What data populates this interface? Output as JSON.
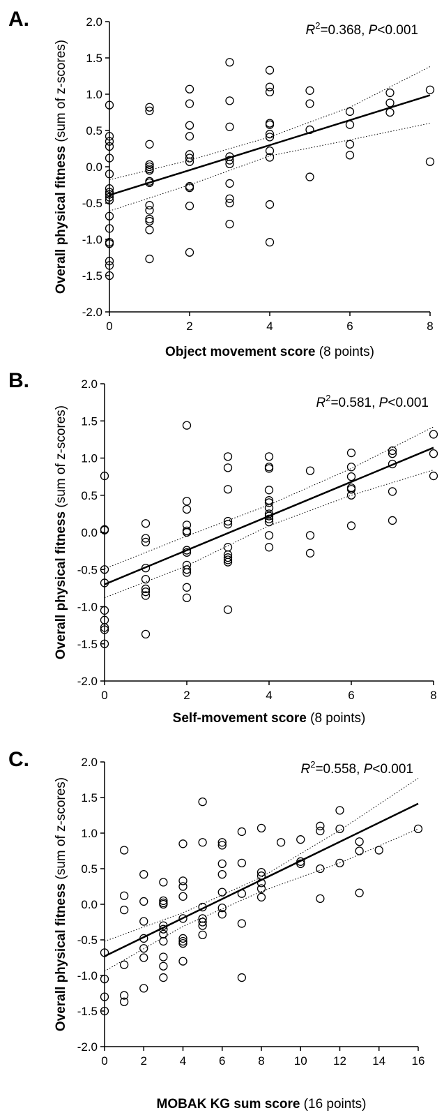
{
  "chart_data": [
    {
      "type": "scatter",
      "panel_label": "A.",
      "annotation": {
        "r2_value": "=0.368, ",
        "p_value": "<0.001"
      },
      "xlabel": {
        "bold": "Object movement score",
        "normal": " (8 points)"
      },
      "ylabel": {
        "bold": "Overall physical fitness",
        "normal": " (sum of z-scores)"
      },
      "xlim": [
        0,
        8
      ],
      "ylim": [
        -2.0,
        2.0
      ],
      "xticks": [
        "0",
        "2",
        "4",
        "6",
        "8"
      ],
      "yticks": [
        "2.0",
        "1.5",
        "1.0",
        "0.5",
        "0.0",
        "-0.5",
        "-1.0",
        "-1.5",
        "-2.0"
      ],
      "points": [
        [
          0,
          0.85
        ],
        [
          0,
          0.42
        ],
        [
          0,
          0.35
        ],
        [
          0,
          0.28
        ],
        [
          0,
          0.12
        ],
        [
          0,
          -0.1
        ],
        [
          0,
          -0.3
        ],
        [
          0,
          -0.35
        ],
        [
          0,
          -0.38
        ],
        [
          0,
          -0.42
        ],
        [
          0,
          -0.46
        ],
        [
          0,
          -0.68
        ],
        [
          0,
          -0.85
        ],
        [
          0,
          -1.04
        ],
        [
          0,
          -1.06
        ],
        [
          0,
          -1.3
        ],
        [
          0,
          -1.36
        ],
        [
          0,
          -1.5
        ],
        [
          1,
          0.82
        ],
        [
          1,
          0.77
        ],
        [
          1,
          0.31
        ],
        [
          1,
          0.03
        ],
        [
          1,
          0.0
        ],
        [
          1,
          -0.03
        ],
        [
          1,
          -0.05
        ],
        [
          1,
          -0.2
        ],
        [
          1,
          -0.22
        ],
        [
          1,
          -0.53
        ],
        [
          1,
          -0.6
        ],
        [
          1,
          -0.72
        ],
        [
          1,
          -0.75
        ],
        [
          1,
          -0.87
        ],
        [
          1,
          -1.27
        ],
        [
          2,
          1.07
        ],
        [
          2,
          0.87
        ],
        [
          2,
          0.57
        ],
        [
          2,
          0.42
        ],
        [
          2,
          0.17
        ],
        [
          2,
          0.12
        ],
        [
          2,
          0.07
        ],
        [
          2,
          -0.27
        ],
        [
          2,
          -0.29
        ],
        [
          2,
          -0.54
        ],
        [
          2,
          -1.18
        ],
        [
          3,
          1.44
        ],
        [
          3,
          0.91
        ],
        [
          3,
          0.55
        ],
        [
          3,
          0.14
        ],
        [
          3,
          0.09
        ],
        [
          3,
          0.04
        ],
        [
          3,
          -0.23
        ],
        [
          3,
          -0.44
        ],
        [
          3,
          -0.5
        ],
        [
          3,
          -0.79
        ],
        [
          4,
          1.33
        ],
        [
          4,
          1.1
        ],
        [
          4,
          1.03
        ],
        [
          4,
          0.6
        ],
        [
          4,
          0.58
        ],
        [
          4,
          0.45
        ],
        [
          4,
          0.41
        ],
        [
          4,
          0.22
        ],
        [
          4,
          0.13
        ],
        [
          4,
          -0.52
        ],
        [
          4,
          -1.04
        ],
        [
          5,
          1.05
        ],
        [
          5,
          0.87
        ],
        [
          5,
          0.51
        ],
        [
          5,
          -0.14
        ],
        [
          6,
          0.76
        ],
        [
          6,
          0.58
        ],
        [
          6,
          0.31
        ],
        [
          6,
          0.16
        ],
        [
          7,
          1.02
        ],
        [
          7,
          0.88
        ],
        [
          7,
          0.75
        ],
        [
          8,
          1.06
        ],
        [
          8,
          0.07
        ]
      ],
      "fit": {
        "intercept": -0.39,
        "slope": 0.172
      },
      "ci_lower": [
        [
          0,
          -0.61
        ],
        [
          2,
          -0.25
        ],
        [
          4,
          0.15
        ],
        [
          6,
          0.37
        ],
        [
          8,
          0.6
        ]
      ],
      "ci_upper": [
        [
          0,
          -0.18
        ],
        [
          2,
          0.09
        ],
        [
          4,
          0.41
        ],
        [
          6,
          0.82
        ],
        [
          8,
          1.38
        ]
      ]
    },
    {
      "type": "scatter",
      "panel_label": "B.",
      "annotation": {
        "r2_value": "=0.581, ",
        "p_value": "<0.001"
      },
      "xlabel": {
        "bold": "Self-movement score",
        "normal": " (8 points)"
      },
      "ylabel": {
        "bold": "Overall physical fitness",
        "normal": " (sum of z-scores)"
      },
      "xlim": [
        0,
        8
      ],
      "ylim": [
        -2.0,
        2.0
      ],
      "xticks": [
        "0",
        "2",
        "4",
        "6",
        "8"
      ],
      "yticks": [
        "2.0",
        "1.5",
        "1.0",
        "0.5",
        "0.0",
        "-0.5",
        "-1.0",
        "-1.5",
        "-2.0"
      ],
      "points": [
        [
          0,
          0.76
        ],
        [
          0,
          0.04
        ],
        [
          0,
          0.03
        ],
        [
          0,
          -0.5
        ],
        [
          0,
          -0.68
        ],
        [
          0,
          -1.05
        ],
        [
          0,
          -1.18
        ],
        [
          0,
          -1.28
        ],
        [
          0,
          -1.31
        ],
        [
          0,
          -1.5
        ],
        [
          1,
          0.12
        ],
        [
          1,
          -0.08
        ],
        [
          1,
          -0.13
        ],
        [
          1,
          -0.48
        ],
        [
          1,
          -0.63
        ],
        [
          1,
          -0.76
        ],
        [
          1,
          -0.8
        ],
        [
          1,
          -0.85
        ],
        [
          1,
          -1.37
        ],
        [
          2,
          1.44
        ],
        [
          2,
          0.42
        ],
        [
          2,
          0.31
        ],
        [
          2,
          0.1
        ],
        [
          2,
          0.02
        ],
        [
          2,
          0.0
        ],
        [
          2,
          -0.24
        ],
        [
          2,
          -0.27
        ],
        [
          2,
          -0.44
        ],
        [
          2,
          -0.5
        ],
        [
          2,
          -0.54
        ],
        [
          2,
          -0.74
        ],
        [
          2,
          -0.88
        ],
        [
          3,
          1.02
        ],
        [
          3,
          0.87
        ],
        [
          3,
          0.58
        ],
        [
          3,
          0.15
        ],
        [
          3,
          0.11
        ],
        [
          3,
          -0.2
        ],
        [
          3,
          -0.3
        ],
        [
          3,
          -0.34
        ],
        [
          3,
          -0.37
        ],
        [
          3,
          -0.4
        ],
        [
          3,
          -1.04
        ],
        [
          4,
          1.02
        ],
        [
          4,
          0.88
        ],
        [
          4,
          0.86
        ],
        [
          4,
          0.57
        ],
        [
          4,
          0.43
        ],
        [
          4,
          0.4
        ],
        [
          4,
          0.33
        ],
        [
          4,
          0.25
        ],
        [
          4,
          0.22
        ],
        [
          4,
          0.18
        ],
        [
          4,
          0.14
        ],
        [
          4,
          -0.04
        ],
        [
          4,
          -0.2
        ],
        [
          5,
          0.83
        ],
        [
          5,
          -0.04
        ],
        [
          5,
          -0.28
        ],
        [
          6,
          1.07
        ],
        [
          6,
          0.88
        ],
        [
          6,
          0.75
        ],
        [
          6,
          0.6
        ],
        [
          6,
          0.58
        ],
        [
          6,
          0.5
        ],
        [
          6,
          0.09
        ],
        [
          7,
          1.1
        ],
        [
          7,
          1.06
        ],
        [
          7,
          0.92
        ],
        [
          7,
          0.55
        ],
        [
          7,
          0.16
        ],
        [
          8,
          1.32
        ],
        [
          8,
          1.06
        ],
        [
          8,
          0.76
        ]
      ],
      "fit": {
        "intercept": -0.7,
        "slope": 0.23
      },
      "ci_lower": [
        [
          0,
          -0.88
        ],
        [
          2,
          -0.45
        ],
        [
          4,
          0.09
        ],
        [
          6,
          0.5
        ],
        [
          8,
          0.84
        ]
      ],
      "ci_upper": [
        [
          0,
          -0.49
        ],
        [
          2,
          -0.05
        ],
        [
          4,
          0.37
        ],
        [
          6,
          0.86
        ],
        [
          8,
          1.42
        ]
      ]
    },
    {
      "type": "scatter",
      "panel_label": "C.",
      "annotation": {
        "r2_value": "=0.558, ",
        "p_value": "<0.001"
      },
      "xlabel": {
        "bold": "MOBAK KG sum score",
        "normal": " (16 points)"
      },
      "ylabel": {
        "bold": "Overall physical fitness",
        "normal": " (sum of z-scores)"
      },
      "xlim": [
        0,
        16
      ],
      "ylim": [
        -2.0,
        2.0
      ],
      "xticks": [
        "0",
        "2",
        "4",
        "6",
        "8",
        "10",
        "12",
        "14",
        "16"
      ],
      "yticks": [
        "2.0",
        "1.5",
        "1.0",
        "0.5",
        "0.0",
        "-0.5",
        "-1.0",
        "-1.5",
        "-2.0"
      ],
      "points": [
        [
          0,
          -0.68
        ],
        [
          0,
          -1.05
        ],
        [
          0,
          -1.3
        ],
        [
          0,
          -1.5
        ],
        [
          1,
          0.76
        ],
        [
          1,
          0.12
        ],
        [
          1,
          -0.08
        ],
        [
          1,
          -0.85
        ],
        [
          1,
          -1.28
        ],
        [
          1,
          -1.37
        ],
        [
          2,
          0.42
        ],
        [
          2,
          0.04
        ],
        [
          2,
          -0.24
        ],
        [
          2,
          -0.48
        ],
        [
          2,
          -0.62
        ],
        [
          2,
          -0.75
        ],
        [
          2,
          -1.18
        ],
        [
          3,
          0.31
        ],
        [
          3,
          0.05
        ],
        [
          3,
          0.02
        ],
        [
          3,
          0.0
        ],
        [
          3,
          -0.3
        ],
        [
          3,
          -0.35
        ],
        [
          3,
          -0.42
        ],
        [
          3,
          -0.52
        ],
        [
          3,
          -0.74
        ],
        [
          3,
          -0.87
        ],
        [
          3,
          -1.03
        ],
        [
          4,
          0.85
        ],
        [
          4,
          0.33
        ],
        [
          4,
          0.25
        ],
        [
          4,
          0.11
        ],
        [
          4,
          -0.2
        ],
        [
          4,
          -0.48
        ],
        [
          4,
          -0.52
        ],
        [
          4,
          -0.55
        ],
        [
          4,
          -0.8
        ],
        [
          5,
          1.44
        ],
        [
          5,
          0.87
        ],
        [
          5,
          -0.04
        ],
        [
          5,
          -0.2
        ],
        [
          5,
          -0.25
        ],
        [
          5,
          -0.3
        ],
        [
          5,
          -0.43
        ],
        [
          6,
          0.87
        ],
        [
          6,
          0.83
        ],
        [
          6,
          0.57
        ],
        [
          6,
          0.42
        ],
        [
          6,
          0.17
        ],
        [
          6,
          -0.05
        ],
        [
          6,
          -0.14
        ],
        [
          7,
          1.02
        ],
        [
          7,
          0.58
        ],
        [
          7,
          0.15
        ],
        [
          7,
          -0.27
        ],
        [
          7,
          -1.03
        ],
        [
          8,
          1.07
        ],
        [
          8,
          0.45
        ],
        [
          8,
          0.4
        ],
        [
          8,
          0.3
        ],
        [
          8,
          0.22
        ],
        [
          8,
          0.1
        ],
        [
          9,
          0.87
        ],
        [
          10,
          0.91
        ],
        [
          10,
          0.6
        ],
        [
          10,
          0.57
        ],
        [
          11,
          1.1
        ],
        [
          11,
          1.03
        ],
        [
          11,
          0.5
        ],
        [
          11,
          0.08
        ],
        [
          12,
          1.32
        ],
        [
          12,
          1.06
        ],
        [
          12,
          0.58
        ],
        [
          13,
          0.88
        ],
        [
          13,
          0.75
        ],
        [
          13,
          0.16
        ],
        [
          14,
          0.76
        ],
        [
          16,
          1.06
        ]
      ],
      "fit": {
        "intercept": -0.73,
        "slope": 0.134
      },
      "ci_lower": [
        [
          0,
          -0.94
        ],
        [
          4,
          -0.31
        ],
        [
          8,
          0.18
        ],
        [
          12,
          0.58
        ],
        [
          16,
          1.06
        ]
      ],
      "ci_upper": [
        [
          0,
          -0.52
        ],
        [
          4,
          -0.12
        ],
        [
          8,
          0.38
        ],
        [
          12,
          1.04
        ],
        [
          16,
          1.77
        ]
      ]
    }
  ]
}
